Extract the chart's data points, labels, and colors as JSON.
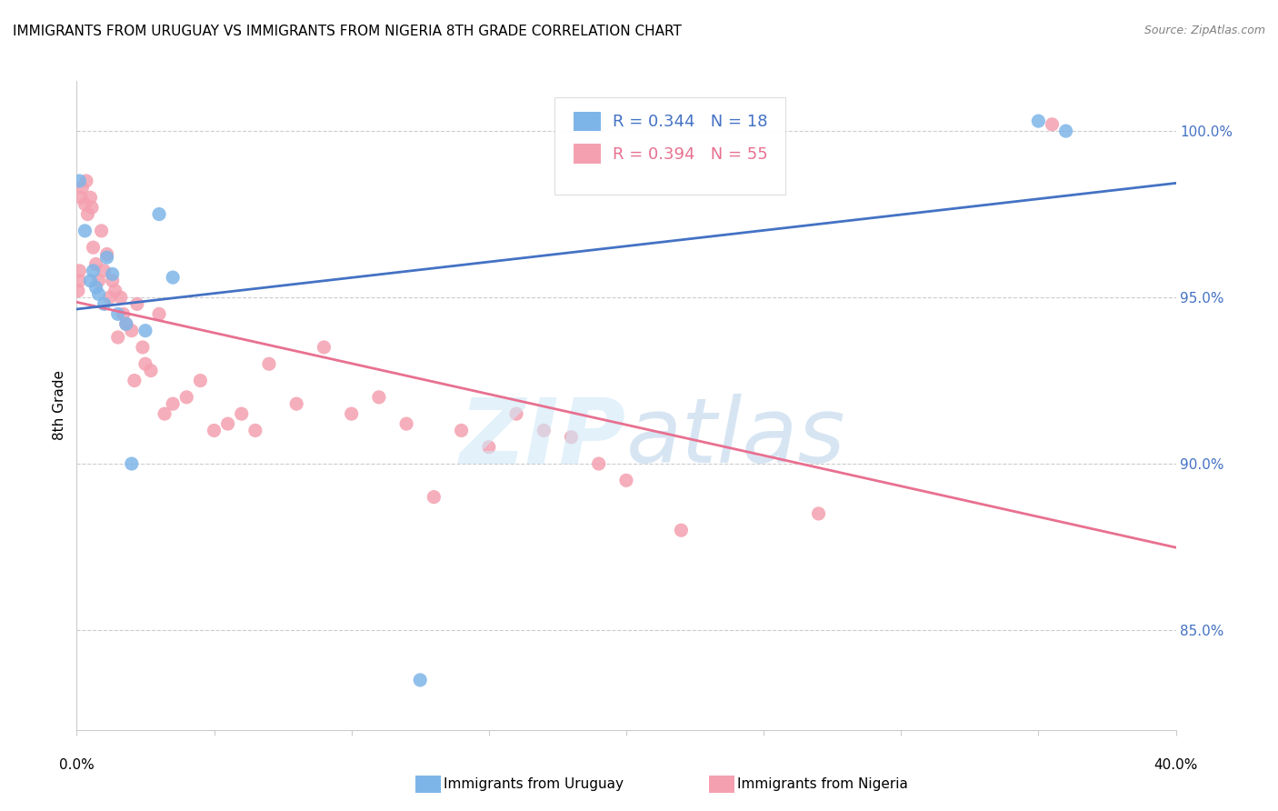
{
  "title": "IMMIGRANTS FROM URUGUAY VS IMMIGRANTS FROM NIGERIA 8TH GRADE CORRELATION CHART",
  "source": "Source: ZipAtlas.com",
  "ylabel": "8th Grade",
  "y_ticks_right": [
    85.0,
    90.0,
    95.0,
    100.0
  ],
  "xlim": [
    0.0,
    40.0
  ],
  "ylim": [
    82.0,
    101.5
  ],
  "uruguay_color": "#7EB5E8",
  "nigeria_color": "#F4A0B0",
  "uruguay_line_color": "#4472C4",
  "nigeria_line_color": "#E87090",
  "R_uruguay": 0.344,
  "N_uruguay": 18,
  "R_nigeria": 0.394,
  "N_nigeria": 55,
  "legend_label_uruguay": "Immigrants from Uruguay",
  "legend_label_nigeria": "Immigrants from Nigeria",
  "uruguay_x": [
    0.1,
    0.3,
    0.5,
    0.6,
    0.7,
    0.8,
    1.0,
    1.1,
    1.3,
    1.5,
    1.8,
    2.0,
    2.5,
    3.0,
    3.5,
    12.5,
    35.0,
    36.0
  ],
  "uruguay_y": [
    98.5,
    97.0,
    95.5,
    95.8,
    95.3,
    95.1,
    94.8,
    96.2,
    95.7,
    94.5,
    94.2,
    90.0,
    94.0,
    97.5,
    95.6,
    83.5,
    100.3,
    100.0
  ],
  "nigeria_x": [
    0.05,
    0.1,
    0.1,
    0.15,
    0.2,
    0.3,
    0.35,
    0.4,
    0.5,
    0.55,
    0.6,
    0.7,
    0.8,
    0.9,
    1.0,
    1.1,
    1.2,
    1.3,
    1.4,
    1.5,
    1.6,
    1.7,
    1.8,
    2.0,
    2.1,
    2.2,
    2.4,
    2.5,
    2.7,
    3.0,
    3.2,
    3.5,
    4.0,
    4.5,
    5.0,
    5.5,
    6.0,
    6.5,
    7.0,
    8.0,
    9.0,
    10.0,
    11.0,
    12.0,
    13.0,
    14.0,
    15.0,
    16.0,
    17.0,
    18.0,
    19.0,
    20.0,
    22.0,
    27.0,
    35.5
  ],
  "nigeria_y": [
    95.2,
    95.5,
    95.8,
    98.0,
    98.3,
    97.8,
    98.5,
    97.5,
    98.0,
    97.7,
    96.5,
    96.0,
    95.5,
    97.0,
    95.8,
    96.3,
    95.0,
    95.5,
    95.2,
    93.8,
    95.0,
    94.5,
    94.2,
    94.0,
    92.5,
    94.8,
    93.5,
    93.0,
    92.8,
    94.5,
    91.5,
    91.8,
    92.0,
    92.5,
    91.0,
    91.2,
    91.5,
    91.0,
    93.0,
    91.8,
    93.5,
    91.5,
    92.0,
    91.2,
    89.0,
    91.0,
    90.5,
    91.5,
    91.0,
    90.8,
    90.0,
    89.5,
    88.0,
    88.5,
    100.2
  ]
}
